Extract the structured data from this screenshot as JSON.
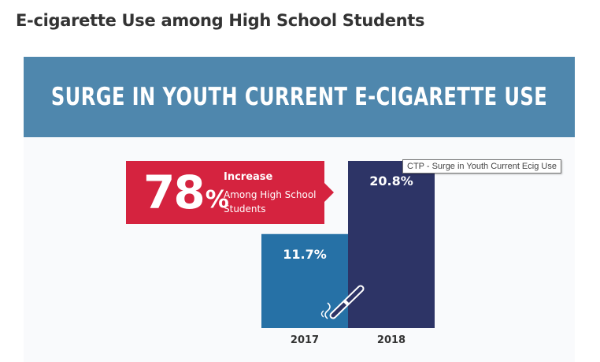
{
  "page_heading": "E-cigarette Use among High School Students",
  "banner_title": "SURGE IN YOUTH CURRENT E-CIGARETTE USE",
  "callout": {
    "value": "78",
    "unit": "%",
    "label_line1": "Increase",
    "label_line2": "Among High School Students"
  },
  "tooltip": "CTP - Surge in Youth Current Ecig Use",
  "colors": {
    "banner": "#4f87ad",
    "callout": "#d5233f",
    "bar_2017": "#2671a6",
    "bar_2018": "#2d3466"
  },
  "chart_data": {
    "type": "bar",
    "categories": [
      "2017",
      "2018"
    ],
    "values": [
      11.7,
      20.8
    ],
    "value_labels": [
      "11.7%",
      "20.8%"
    ],
    "ylim": [
      0,
      20.8
    ],
    "grid": false
  }
}
